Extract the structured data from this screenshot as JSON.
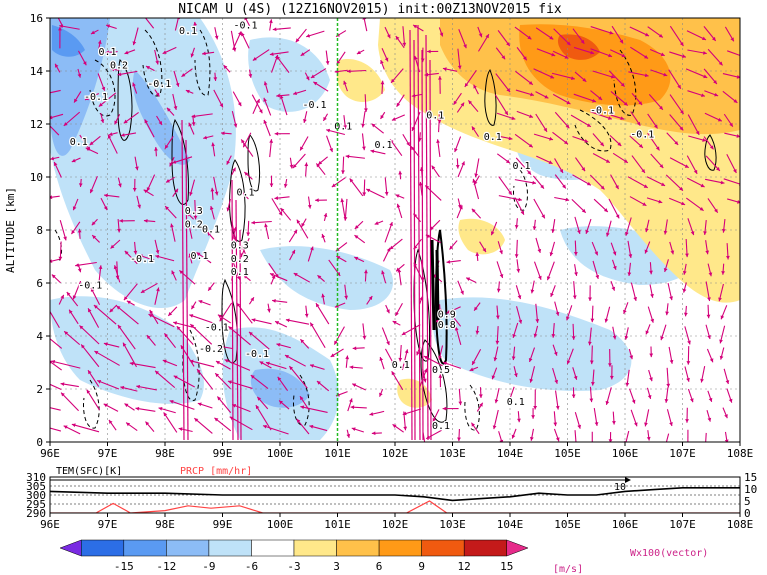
{
  "title": "NICAM U (4S) (12Z16NOV2015) init:00Z13NOV2015 fix",
  "chart_data": [
    {
      "type": "heatmap",
      "panel": "main-cross-section",
      "field": "U",
      "ylabel": "ALTITUDE [km]",
      "xlabel": "",
      "x_ticks": [
        "96E",
        "97E",
        "98E",
        "99E",
        "100E",
        "101E",
        "102E",
        "103E",
        "104E",
        "105E",
        "106E",
        "107E",
        "108E"
      ],
      "y_ticks": [
        "0",
        "2",
        "4",
        "6",
        "8",
        "10",
        "12",
        "14",
        "16"
      ],
      "xlim": [
        96,
        108
      ],
      "ylim": [
        0,
        16
      ],
      "grid": true,
      "marker_line_lon": 101,
      "contour_labels": [
        {
          "text": "0.1",
          "lon": 97.0,
          "alt": 14.6
        },
        {
          "text": "0.2",
          "lon": 97.2,
          "alt": 14.1
        },
        {
          "text": "-0.1",
          "lon": 97.9,
          "alt": 13.4
        },
        {
          "text": "-0.1",
          "lon": 96.8,
          "alt": 12.9
        },
        {
          "text": "0.1",
          "lon": 96.5,
          "alt": 11.2
        },
        {
          "text": "0.1",
          "lon": 98.4,
          "alt": 15.4
        },
        {
          "text": "-0.1",
          "lon": 99.4,
          "alt": 15.6
        },
        {
          "text": "-0.1",
          "lon": 100.6,
          "alt": 12.6
        },
        {
          "text": "0.1",
          "lon": 101.1,
          "alt": 11.8
        },
        {
          "text": "0.1",
          "lon": 101.8,
          "alt": 11.1
        },
        {
          "text": "0.1",
          "lon": 102.7,
          "alt": 12.2
        },
        {
          "text": "0.1",
          "lon": 103.7,
          "alt": 11.4
        },
        {
          "text": "-0.1",
          "lon": 105.6,
          "alt": 12.4
        },
        {
          "text": "-0.1",
          "lon": 106.3,
          "alt": 11.5
        },
        {
          "text": "0.1",
          "lon": 104.2,
          "alt": 10.3
        },
        {
          "text": "0.1",
          "lon": 99.4,
          "alt": 9.3
        },
        {
          "text": "0.3",
          "lon": 98.5,
          "alt": 8.6
        },
        {
          "text": "0.2",
          "lon": 98.5,
          "alt": 8.1
        },
        {
          "text": "0.1",
          "lon": 98.8,
          "alt": 7.9
        },
        {
          "text": "-0.1",
          "lon": 97.6,
          "alt": 6.8
        },
        {
          "text": "0.1",
          "lon": 98.6,
          "alt": 6.9
        },
        {
          "text": "0.3",
          "lon": 99.3,
          "alt": 7.3
        },
        {
          "text": "0.2",
          "lon": 99.3,
          "alt": 6.8
        },
        {
          "text": "0.1",
          "lon": 99.3,
          "alt": 6.3
        },
        {
          "text": "-0.1",
          "lon": 96.7,
          "alt": 5.8
        },
        {
          "text": "-0.1",
          "lon": 98.9,
          "alt": 4.2
        },
        {
          "text": "-0.2",
          "lon": 98.8,
          "alt": 3.4
        },
        {
          "text": "-0.1",
          "lon": 99.6,
          "alt": 3.2
        },
        {
          "text": "0.9",
          "lon": 102.9,
          "alt": 4.7
        },
        {
          "text": "0.8",
          "lon": 102.9,
          "alt": 4.3
        },
        {
          "text": "0.1",
          "lon": 102.1,
          "alt": 2.8
        },
        {
          "text": "0.5",
          "lon": 102.8,
          "alt": 2.6
        },
        {
          "text": "0.1",
          "lon": 104.1,
          "alt": 1.4
        },
        {
          "text": "0.1",
          "lon": 102.8,
          "alt": 0.5
        }
      ]
    },
    {
      "type": "line",
      "panel": "surface-timeseries",
      "series": [
        {
          "name": "TEM(SFC)[K]",
          "color": "#000000",
          "lon": [
            96,
            97,
            98,
            99,
            100,
            101,
            102,
            102.5,
            103,
            103.5,
            104,
            104.5,
            105,
            105.5,
            106,
            106.5,
            107,
            108
          ],
          "values": [
            302,
            301,
            301,
            300,
            300,
            300,
            300,
            299,
            297,
            298,
            299,
            301,
            300,
            300,
            302,
            303,
            304,
            304
          ]
        },
        {
          "name": "PRCP [mm/hr]",
          "color": "#ff4444",
          "lon": [
            96,
            96.8,
            97.1,
            97.4,
            98.0,
            98.4,
            98.8,
            99.3,
            99.7,
            100,
            102.2,
            102.6,
            102.9,
            103.2,
            108
          ],
          "values": [
            0,
            0,
            4,
            0,
            1,
            3,
            2,
            3,
            0,
            0,
            0,
            5,
            0,
            0,
            0
          ]
        }
      ],
      "left_ticks": [
        "310",
        "305",
        "300",
        "295",
        "290"
      ],
      "right_ticks": [
        "15",
        "10",
        "5",
        "0"
      ],
      "x_ticks": [
        "96E",
        "97E",
        "98E",
        "99E",
        "100E",
        "101E",
        "102E",
        "103E",
        "104E",
        "105E",
        "106E",
        "107E",
        "108E"
      ],
      "ylim_left": [
        290,
        310
      ],
      "ylim_right": [
        0,
        15
      ],
      "annotation": "10"
    },
    {
      "type": "colorbar",
      "ticks": [
        "-15",
        "-12",
        "-9",
        "-6",
        "-3",
        "3",
        "6",
        "9",
        "12",
        "15"
      ],
      "colors": [
        "#7a2be2",
        "#2c6ee6",
        "#5a9af2",
        "#8cbcf6",
        "#bfe2f8",
        "#ffffff",
        "#ffe88a",
        "#ffc14a",
        "#ff9a17",
        "#f05a10",
        "#c41a1a",
        "#e62b8a"
      ],
      "unit": "[m/s]",
      "vector_label": "Wx100(vector)"
    }
  ]
}
